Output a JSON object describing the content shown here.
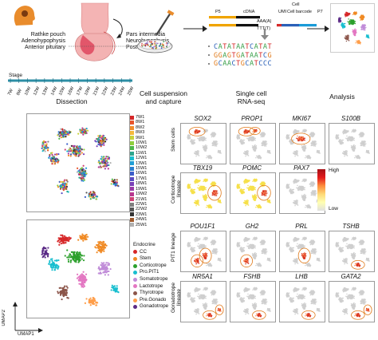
{
  "anatomy": {
    "labels": [
      "Rathke pouch",
      "Adenohypophysis",
      "Anterior pituitary"
    ],
    "right_labels": [
      "Pars intermedia",
      "Neurohypophysis",
      "Posterior pituitary"
    ]
  },
  "sequence": {
    "top_labels": [
      "P5",
      "cDNA",
      "UMI",
      "Cell barcode",
      "P7"
    ],
    "polyA": "AAA(A)",
    "polyT": "TTT(T)",
    "reads": [
      [
        "C",
        "A",
        "T",
        "A",
        "T",
        "A",
        "A",
        "T",
        "C",
        "A",
        "T",
        "A",
        "T"
      ],
      [
        "G",
        "G",
        "A",
        "G",
        "T",
        "G",
        "A",
        "T",
        "A",
        "A",
        "T",
        "C",
        "G"
      ],
      [
        "G",
        "C",
        "A",
        "A",
        "C",
        "T",
        "G",
        "C",
        "A",
        "T",
        "C",
        "C",
        "C"
      ]
    ]
  },
  "colors": {
    "A": "#3aa04a",
    "C": "#2a60b8",
    "G": "#e07a1a",
    "T": "#d62a2a",
    "timeline": "#2c8ea5",
    "high": "#c81e1e",
    "low": "#d8d8d8",
    "endocrine": [
      "#d62728",
      "#f08a24",
      "#2ca02c",
      "#17becf",
      "#9467bd",
      "#8c564b",
      "#e377c2",
      "#7f7f7f",
      "#bcbd22",
      "#1f77b4",
      "#ff9896",
      "#98df8a"
    ]
  },
  "stage": {
    "label": "Stage",
    "ticks": [
      "7W",
      "8W",
      "10W",
      "12W",
      "13W",
      "14W",
      "15W",
      "16W",
      "17W",
      "19W",
      "21W",
      "22W",
      "23W",
      "24W",
      "25W"
    ]
  },
  "steps": {
    "dissection": "Dissection",
    "capture": "Cell suspension\nand capture",
    "seq": "Single cell\nRNA-seq",
    "analysis": "Analysis"
  },
  "legend_weeks": [
    "7W1",
    "8W1",
    "8W2",
    "8W3",
    "9W1",
    "10W1",
    "10W2",
    "11W1",
    "12W1",
    "13W1",
    "15W1",
    "16W1",
    "17W1",
    "18W1",
    "19W1",
    "19W2",
    "21W1",
    "22W1",
    "22W2",
    "23W1",
    "24W1",
    "25W1"
  ],
  "legend_types": [
    "Endocrine",
    "CC",
    "Stem",
    "Corticotrope",
    "Pro.PIT1",
    "Somatotrope",
    "Lactotrope",
    "Thyrotrope",
    "Pre.Gonado",
    "Gonadotrope"
  ],
  "axes": {
    "umap1": "UMAP1",
    "umap2": "UMAP2"
  },
  "color_scale": {
    "high": "High",
    "low": "Low"
  },
  "panels": {
    "rows": [
      {
        "label": "Stem cells",
        "genes": [
          "SOX2",
          "PROP1",
          "MKI67",
          "S100B"
        ]
      },
      {
        "label": "Corticotrope\nlineage",
        "genes": [
          "TBX19",
          "POMC",
          "PAX7"
        ]
      },
      {
        "label": "PIT1 lineage",
        "genes": [
          "POU1F1",
          "GH2",
          "PRL",
          "TSHB"
        ]
      },
      {
        "label": "Gonadotrope\nlineage",
        "genes": [
          "NR5A1",
          "FSHB",
          "LHB",
          "GATA2"
        ]
      }
    ]
  }
}
